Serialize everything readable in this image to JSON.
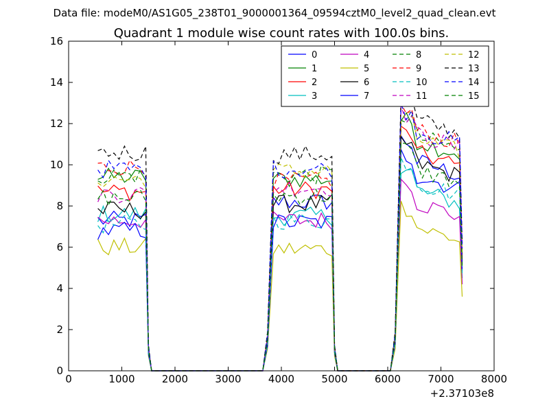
{
  "page": {
    "suptitle": "Data file: modeM0/AS1G05_238T01_9000001364_09594cztM0_level2_quad_clean.evt"
  },
  "chart_data": {
    "type": "line",
    "title": "Quadrant 1 module wise count rates with 100.0s bins.",
    "xlabel": "",
    "ylabel": "",
    "x_offset_label": "+2.37103e8",
    "xlim": [
      0,
      8000
    ],
    "ylim": [
      0,
      16
    ],
    "x_ticks": [
      0,
      1000,
      2000,
      3000,
      4000,
      5000,
      6000,
      7000,
      8000
    ],
    "y_ticks": [
      0,
      2,
      4,
      6,
      8,
      10,
      12,
      14,
      16
    ],
    "grid": false,
    "legend_position": "top-right",
    "legend_columns": 4,
    "segments": [
      {
        "start": 500,
        "bin": 100,
        "n": 10
      },
      {
        "start": 3800,
        "bin": 100,
        "n": 12
      },
      {
        "start": 6200,
        "bin": 100,
        "n": 12
      }
    ],
    "series": [
      {
        "name": "0",
        "color": "#0000ff",
        "style": "solid",
        "levels": [
          7.3,
          8.2,
          10.4
        ]
      },
      {
        "name": "1",
        "color": "#008000",
        "style": "solid",
        "levels": [
          9.4,
          9.3,
          11.4
        ]
      },
      {
        "name": "2",
        "color": "#ff0000",
        "style": "solid",
        "levels": [
          8.7,
          8.8,
          10.8
        ]
      },
      {
        "name": "3",
        "color": "#00bfbf",
        "style": "solid",
        "levels": [
          7.6,
          7.5,
          9.0
        ]
      },
      {
        "name": "4",
        "color": "#bf00bf",
        "style": "solid",
        "levels": [
          7.3,
          7.3,
          8.4
        ]
      },
      {
        "name": "5",
        "color": "#bfbf00",
        "style": "solid",
        "levels": [
          6.0,
          5.9,
          7.2
        ]
      },
      {
        "name": "6",
        "color": "#000000",
        "style": "solid",
        "levels": [
          7.8,
          8.1,
          10.3
        ]
      },
      {
        "name": "7",
        "color": "#0000ff",
        "style": "solid",
        "levels": [
          6.8,
          7.2,
          9.7
        ]
      },
      {
        "name": "8",
        "color": "#008000",
        "style": "dashed",
        "levels": [
          9.5,
          9.5,
          11.6
        ]
      },
      {
        "name": "9",
        "color": "#ff0000",
        "style": "dashed",
        "levels": [
          9.9,
          9.2,
          11.9
        ]
      },
      {
        "name": "10",
        "color": "#00bfbf",
        "style": "dashed",
        "levels": [
          7.1,
          7.3,
          9.4
        ]
      },
      {
        "name": "11",
        "color": "#bf00bf",
        "style": "dashed",
        "levels": [
          8.6,
          8.9,
          11.7
        ]
      },
      {
        "name": "12",
        "color": "#bfbf00",
        "style": "dashed",
        "levels": [
          9.3,
          9.7,
          11.5
        ]
      },
      {
        "name": "13",
        "color": "#000000",
        "style": "dashed",
        "levels": [
          10.6,
          10.5,
          12.4
        ]
      },
      {
        "name": "14",
        "color": "#0000ff",
        "style": "dashed",
        "levels": [
          9.8,
          9.8,
          11.9
        ]
      },
      {
        "name": "15",
        "color": "#008000",
        "style": "dashed",
        "levels": [
          8.4,
          8.5,
          10.0
        ]
      }
    ]
  }
}
